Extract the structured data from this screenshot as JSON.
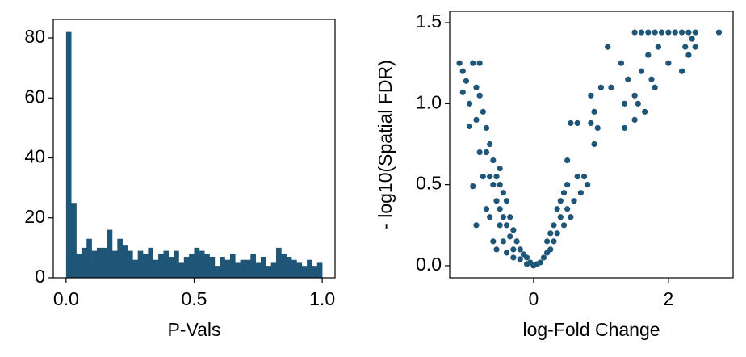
{
  "chart_data": [
    {
      "type": "histogram",
      "xlabel": "P-Vals",
      "color": "#1f5577",
      "bins": [
        0,
        0.02,
        0.04,
        0.06,
        0.08,
        0.1,
        0.12,
        0.14,
        0.16,
        0.18,
        0.2,
        0.22,
        0.24,
        0.26,
        0.28,
        0.3,
        0.32,
        0.34,
        0.36,
        0.38,
        0.4,
        0.42,
        0.44,
        0.46,
        0.48,
        0.5,
        0.52,
        0.54,
        0.56,
        0.58,
        0.6,
        0.62,
        0.64,
        0.66,
        0.68,
        0.7,
        0.72,
        0.74,
        0.76,
        0.78,
        0.8,
        0.82,
        0.84,
        0.86,
        0.88,
        0.9,
        0.92,
        0.94,
        0.96,
        0.98,
        1.0
      ],
      "values": [
        82,
        25,
        8,
        10,
        13,
        9,
        10,
        10,
        16,
        9,
        13,
        11,
        9,
        6,
        9,
        8,
        10,
        6,
        8,
        9,
        7,
        9,
        5,
        7,
        8,
        10,
        9,
        8,
        7,
        4,
        7,
        6,
        8,
        5,
        6,
        6,
        8,
        5,
        7,
        4,
        5,
        10,
        8,
        7,
        6,
        5,
        4,
        6,
        4,
        5
      ],
      "xlim": [
        -0.05,
        1.05
      ],
      "ylim": [
        0,
        86.2
      ],
      "xticks": [
        {
          "value": 0,
          "label": "0.0"
        },
        {
          "value": 0.5,
          "label": "0.5"
        },
        {
          "value": 1,
          "label": "1.0"
        }
      ],
      "yticks": [
        0,
        20,
        40,
        60,
        80
      ]
    },
    {
      "type": "scatter",
      "xlabel": "log-Fold Change",
      "ylabel": "- log10(Spatial FDR)",
      "color": "#1f5577",
      "x": [
        -1.1,
        -1.05,
        -0.9,
        -0.8,
        -1.0,
        -1.05,
        -0.95,
        -0.85,
        -0.8,
        -0.75,
        -0.95,
        -0.85,
        -0.7,
        -0.65,
        -0.8,
        -0.7,
        -0.6,
        -0.65,
        -0.55,
        -0.6,
        -0.5,
        -0.5,
        -0.45,
        -0.55,
        -0.5,
        -0.4,
        -0.45,
        -0.35,
        -0.4,
        -0.3,
        -0.35,
        -0.25,
        -0.3,
        -0.2,
        -0.15,
        -0.1,
        -0.2,
        -0.05,
        -0.1,
        -0.6,
        -0.55,
        -0.4,
        -0.85,
        -0.9,
        -0.7,
        -0.75,
        -0.5,
        -0.65,
        -0.3,
        -0.45,
        0.0,
        0.05,
        0.1,
        0.15,
        0.2,
        0.25,
        0.3,
        0.35,
        0.3,
        0.4,
        0.35,
        0.4,
        0.45,
        0.5,
        0.5,
        0.55,
        0.6,
        0.65,
        0.7,
        0.75,
        0.8,
        0.5,
        0.55,
        0.65,
        0.85,
        0.9,
        0.95,
        0.9,
        0.85,
        1.0,
        1.1,
        1.15,
        1.3,
        1.35,
        1.35,
        1.4,
        1.5,
        1.5,
        1.55,
        1.6,
        1.65,
        1.7,
        1.5,
        1.6,
        1.7,
        1.8,
        1.9,
        2.0,
        2.1,
        2.2,
        2.3,
        2.4,
        2.75,
        1.85,
        2.0,
        2.2,
        2.25,
        2.3,
        2.4,
        1.75,
        1.8,
        2.35,
        0.25,
        0.2,
        0.45
      ],
      "y": [
        1.25,
        1.2,
        1.25,
        1.25,
        1.14,
        1.07,
        1.0,
        1.1,
        1.05,
        0.95,
        0.86,
        0.9,
        0.85,
        0.75,
        0.7,
        0.7,
        0.65,
        0.55,
        0.55,
        0.5,
        0.6,
        0.5,
        0.45,
        0.4,
        0.35,
        0.4,
        0.3,
        0.3,
        0.25,
        0.22,
        0.18,
        0.15,
        0.1,
        0.1,
        0.07,
        0.05,
        0.04,
        0.02,
        0.01,
        0.15,
        0.1,
        0.08,
        0.25,
        0.49,
        0.35,
        0.55,
        0.25,
        0.3,
        0.05,
        0.15,
        0.0,
        0.01,
        0.02,
        0.05,
        0.08,
        0.1,
        0.15,
        0.2,
        0.25,
        0.3,
        0.35,
        0.4,
        0.45,
        0.35,
        0.5,
        0.3,
        0.4,
        0.55,
        0.45,
        0.55,
        0.5,
        0.65,
        0.88,
        0.88,
        0.88,
        0.95,
        0.85,
        0.75,
        1.05,
        1.1,
        1.35,
        1.1,
        1.25,
        1.0,
        0.85,
        1.15,
        1.05,
        0.9,
        1.0,
        1.2,
        0.95,
        1.3,
        1.44,
        1.44,
        1.44,
        1.44,
        1.44,
        1.44,
        1.44,
        1.44,
        1.44,
        1.44,
        1.44,
        1.35,
        1.25,
        1.2,
        1.35,
        1.3,
        1.35,
        1.15,
        1.1,
        1.4,
        0.2,
        0.15,
        0.25
      ],
      "xlim": [
        -1.245,
        2.96
      ],
      "ylim": [
        -0.075,
        1.57
      ],
      "xticks": [
        0,
        2
      ],
      "yticks": [
        {
          "value": 0,
          "label": "0.0"
        },
        {
          "value": 0.5,
          "label": "0.5"
        },
        {
          "value": 1,
          "label": "1.0"
        },
        {
          "value": 1.5,
          "label": "1.5"
        }
      ]
    }
  ]
}
